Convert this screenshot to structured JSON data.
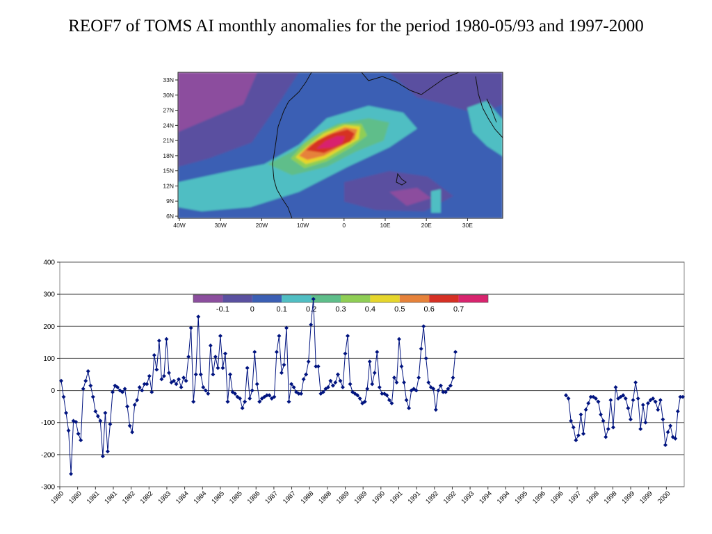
{
  "title": "REOF7 of TOMS AI monthly anomalies for the period 1980-05/93 and 1997-2000",
  "map": {
    "lat_labels": [
      "33N",
      "30N",
      "27N",
      "24N",
      "21N",
      "18N",
      "15N",
      "12N",
      "9N",
      "6N"
    ],
    "lon_labels": [
      "40W",
      "30W",
      "20W",
      "10W",
      "0",
      "10E",
      "20E",
      "30E"
    ],
    "colorbar": {
      "labels": [
        "-0.1",
        "0",
        "0.1",
        "0.2",
        "0.3",
        "0.4",
        "0.5",
        "0.6",
        "0.7"
      ],
      "colors": [
        "#8c4e9e",
        "#5a50a0",
        "#3b5fb4",
        "#50bec3",
        "#5ebe8a",
        "#8fce55",
        "#e6d62c",
        "#e6823a",
        "#d63024",
        "#d8246e"
      ]
    }
  },
  "chart_data": {
    "type": "line",
    "ylim": [
      -300,
      400
    ],
    "yticks": [
      400,
      300,
      200,
      100,
      0,
      -100,
      -200,
      -300
    ],
    "xtick_labels": [
      "1980",
      "1980",
      "1981",
      "1981",
      "1982",
      "1982",
      "1983",
      "1984",
      "1984",
      "1985",
      "1985",
      "1986",
      "1987",
      "1987",
      "1988",
      "1988",
      "1989",
      "1989",
      "1990",
      "1991",
      "1991",
      "1992",
      "1992",
      "1993",
      "1994",
      "1994",
      "1995",
      "1996",
      "1996",
      "1997",
      "1998",
      "1998",
      "1999",
      "1999",
      "2000"
    ],
    "series": [
      {
        "period": "1980-05/1993",
        "values": [
          30,
          -20,
          -70,
          -125,
          -260,
          -95,
          -98,
          -135,
          -155,
          5,
          30,
          60,
          15,
          -20,
          -65,
          -80,
          -95,
          -205,
          -70,
          -190,
          -105,
          -5,
          15,
          10,
          0,
          -5,
          5,
          -50,
          -110,
          -130,
          -45,
          -30,
          10,
          0,
          20,
          20,
          45,
          -5,
          110,
          65,
          155,
          35,
          45,
          160,
          55,
          25,
          30,
          20,
          35,
          10,
          40,
          30,
          105,
          195,
          -35,
          50,
          230,
          50,
          10,
          0,
          -10,
          140,
          50,
          105,
          70,
          170,
          70,
          115,
          -35,
          50,
          -5,
          -10,
          -20,
          -25,
          -55,
          -35,
          70,
          -25,
          0,
          120,
          20,
          -35,
          -25,
          -20,
          -15,
          -15,
          -25,
          -20,
          120,
          170,
          55,
          80,
          195,
          -35,
          20,
          10,
          -5,
          -10,
          -10,
          35,
          50,
          90,
          205,
          285,
          75,
          75,
          -10,
          -5,
          5,
          10,
          30,
          15,
          25,
          50,
          30,
          10,
          115,
          170,
          20,
          -5,
          -10,
          -15,
          -25,
          -40,
          -35,
          5,
          90,
          20,
          55,
          120,
          10,
          -10,
          -10,
          -15,
          -30,
          -40,
          40,
          25,
          160,
          75,
          25,
          -30,
          -55,
          0,
          5,
          0,
          40,
          130,
          200,
          100,
          25,
          10,
          5,
          -60,
          0,
          15,
          -5,
          -5,
          5,
          15,
          40,
          120
        ]
      },
      {
        "period": "1997-2000",
        "values": [
          -15,
          -25,
          -95,
          -115,
          -155,
          -140,
          -75,
          -135,
          -60,
          -40,
          -20,
          -20,
          -25,
          -35,
          -75,
          -95,
          -145,
          -120,
          -30,
          -115,
          10,
          -25,
          -20,
          -15,
          -25,
          -55,
          -90,
          -30,
          25,
          -25,
          -120,
          -45,
          -100,
          -40,
          -30,
          -25,
          -35,
          -60,
          -30,
          -90,
          -170,
          -130,
          -110,
          -145,
          -150,
          -65,
          -20,
          -20
        ]
      }
    ]
  }
}
